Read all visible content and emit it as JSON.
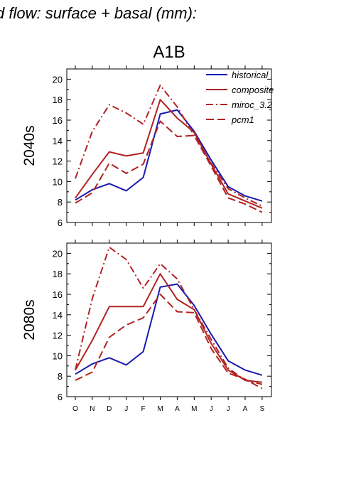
{
  "figure": {
    "top_title": "d flow: surface + basal (mm):",
    "scenario": "A1B"
  },
  "chart_data": [
    {
      "type": "line",
      "panel_label": "2040s",
      "x": [
        "O",
        "N",
        "D",
        "J",
        "F",
        "M",
        "A",
        "M",
        "J",
        "J",
        "A",
        "S"
      ],
      "ylim": [
        6,
        21
      ],
      "yticks": [
        6,
        8,
        10,
        12,
        14,
        16,
        18,
        20
      ],
      "legend": "top-right",
      "series": [
        {
          "name": "historical",
          "color": "#1a1aaf",
          "style": "solid",
          "values": [
            8.2,
            9.2,
            9.8,
            9.1,
            10.4,
            16.6,
            17.0,
            14.9,
            12.1,
            9.5,
            8.6,
            8.1
          ]
        },
        {
          "name": "composite",
          "color": "#b22222",
          "style": "solid",
          "values": [
            8.4,
            10.7,
            12.9,
            12.5,
            12.8,
            18.0,
            16.2,
            14.8,
            11.7,
            8.8,
            8.1,
            7.4
          ]
        },
        {
          "name": "miroc_3.2",
          "color": "#b22222",
          "style": "dashdot",
          "values": [
            10.3,
            14.9,
            17.5,
            16.7,
            15.6,
            19.4,
            17.3,
            14.5,
            11.8,
            9.3,
            8.4,
            7.6
          ]
        },
        {
          "name": "pcm1",
          "color": "#b22222",
          "style": "dashed",
          "values": [
            7.9,
            8.9,
            11.8,
            10.8,
            11.7,
            15.9,
            14.4,
            14.5,
            11.5,
            8.4,
            7.8,
            7.0
          ]
        }
      ]
    },
    {
      "type": "line",
      "panel_label": "2080s",
      "x": [
        "O",
        "N",
        "D",
        "J",
        "F",
        "M",
        "A",
        "M",
        "J",
        "J",
        "A",
        "S"
      ],
      "ylim": [
        6,
        21
      ],
      "yticks": [
        6,
        8,
        10,
        12,
        14,
        16,
        18,
        20
      ],
      "series": [
        {
          "name": "historical",
          "color": "#1a1aaf",
          "style": "solid",
          "values": [
            8.2,
            9.2,
            9.8,
            9.1,
            10.4,
            16.7,
            17.0,
            14.9,
            12.1,
            9.5,
            8.6,
            8.1
          ]
        },
        {
          "name": "composite",
          "color": "#b22222",
          "style": "solid",
          "values": [
            8.6,
            11.5,
            14.8,
            14.8,
            14.8,
            18.0,
            15.5,
            14.5,
            11.2,
            8.6,
            7.6,
            7.4
          ]
        },
        {
          "name": "miroc_3.2",
          "color": "#b22222",
          "style": "dashdot",
          "values": [
            8.6,
            15.6,
            20.6,
            19.4,
            16.6,
            19.0,
            17.5,
            14.5,
            11.6,
            8.8,
            7.6,
            7.2
          ]
        },
        {
          "name": "pcm1",
          "color": "#b22222",
          "style": "dashed",
          "values": [
            7.6,
            8.4,
            11.8,
            13.0,
            13.7,
            16.0,
            14.3,
            14.2,
            10.7,
            8.3,
            7.7,
            6.8
          ]
        }
      ]
    }
  ]
}
